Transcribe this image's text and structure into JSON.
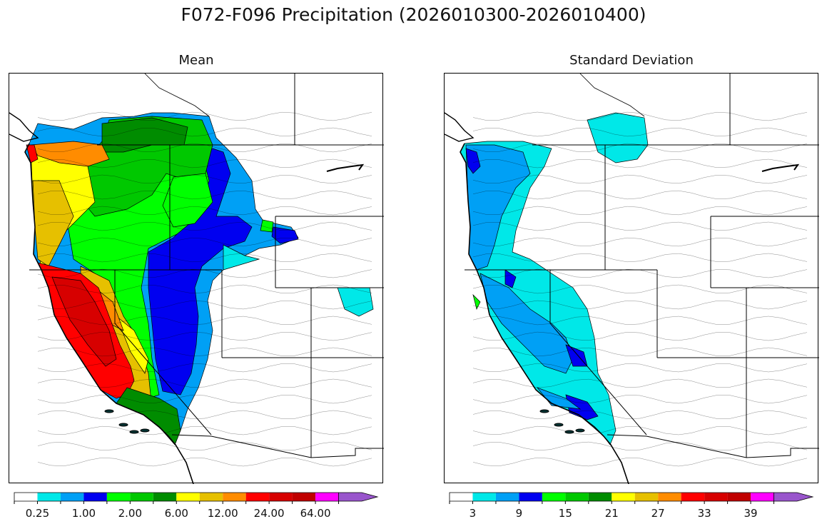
{
  "figure_title": "F072-F096 Precipitation (2026010300-2026010400)",
  "panels": [
    {
      "title": "Mean",
      "colorbar_labels": [
        "0.25",
        "1.00",
        "2.00",
        "6.00",
        "12.00",
        "24.00",
        "64.00"
      ]
    },
    {
      "title": "Standard Deviation",
      "colorbar_labels": [
        "3",
        "9",
        "15",
        "21",
        "27",
        "33",
        "39"
      ]
    }
  ],
  "colormap": [
    "#ffffff",
    "#00e8e8",
    "#00a0f5",
    "#0000f0",
    "#00ff00",
    "#00c800",
    "#008c00",
    "#ffff00",
    "#e6c000",
    "#ff8c00",
    "#ff0000",
    "#d70000",
    "#c00000",
    "#ff00ff",
    "#9955cc"
  ]
}
